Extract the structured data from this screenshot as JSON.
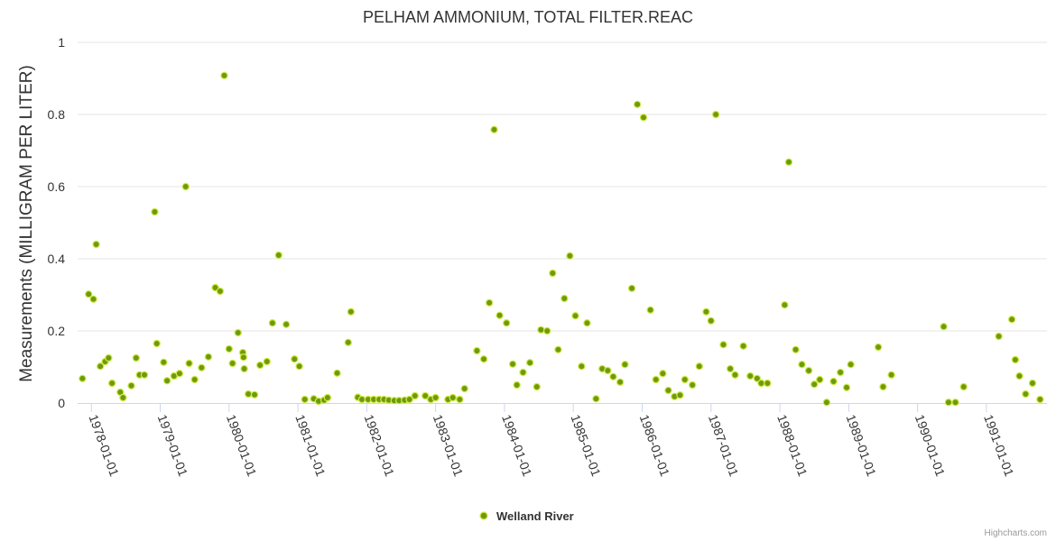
{
  "chart_data": {
    "type": "scatter",
    "title": "PELHAM AMMONIUM, TOTAL FILTER.REAC",
    "ylabel": "Measurements (MILLIGRAM PER LITER)",
    "xlabel": "",
    "ylim": [
      0,
      1
    ],
    "yticks": [
      0,
      0.2,
      0.4,
      0.6,
      0.8,
      1
    ],
    "ytick_labels": [
      "0",
      "0.2",
      "0.4",
      "0.6",
      "0.8",
      "1"
    ],
    "xlim": [
      1977.8,
      1991.88
    ],
    "xticks": [
      1978,
      1979,
      1980,
      1981,
      1982,
      1983,
      1984,
      1985,
      1986,
      1987,
      1988,
      1989,
      1990,
      1991
    ],
    "xtick_labels": [
      "1978-01-01",
      "1979-01-01",
      "1980-01-01",
      "1981-01-01",
      "1982-01-01",
      "1983-01-01",
      "1984-01-01",
      "1985-01-01",
      "1986-01-01",
      "1987-01-01",
      "1988-01-01",
      "1989-01-01",
      "1990-01-01",
      "1991-01-01"
    ],
    "grid": true,
    "legend_position": "bottom-center",
    "color": "#6b9c0e",
    "credits": "Highcharts.com",
    "series": [
      {
        "name": "Welland River",
        "points": [
          [
            1977.87,
            0.068
          ],
          [
            1977.96,
            0.302
          ],
          [
            1978.03,
            0.288
          ],
          [
            1978.07,
            0.44
          ],
          [
            1978.13,
            0.102
          ],
          [
            1978.2,
            0.115
          ],
          [
            1978.25,
            0.125
          ],
          [
            1978.3,
            0.055
          ],
          [
            1978.42,
            0.03
          ],
          [
            1978.46,
            0.015
          ],
          [
            1978.58,
            0.048
          ],
          [
            1978.65,
            0.125
          ],
          [
            1978.7,
            0.078
          ],
          [
            1978.77,
            0.078
          ],
          [
            1978.92,
            0.53
          ],
          [
            1978.95,
            0.165
          ],
          [
            1979.05,
            0.113
          ],
          [
            1979.1,
            0.062
          ],
          [
            1979.2,
            0.075
          ],
          [
            1979.28,
            0.082
          ],
          [
            1979.37,
            0.6
          ],
          [
            1979.42,
            0.11
          ],
          [
            1979.5,
            0.065
          ],
          [
            1979.6,
            0.098
          ],
          [
            1979.7,
            0.128
          ],
          [
            1979.8,
            0.32
          ],
          [
            1979.87,
            0.31
          ],
          [
            1979.93,
            0.908
          ],
          [
            1980.0,
            0.15
          ],
          [
            1980.05,
            0.11
          ],
          [
            1980.13,
            0.195
          ],
          [
            1980.2,
            0.14
          ],
          [
            1980.21,
            0.127
          ],
          [
            1980.22,
            0.095
          ],
          [
            1980.28,
            0.025
          ],
          [
            1980.37,
            0.023
          ],
          [
            1980.45,
            0.105
          ],
          [
            1980.55,
            0.115
          ],
          [
            1980.63,
            0.222
          ],
          [
            1980.72,
            0.41
          ],
          [
            1980.83,
            0.218
          ],
          [
            1980.95,
            0.122
          ],
          [
            1981.02,
            0.102
          ],
          [
            1981.1,
            0.01
          ],
          [
            1981.23,
            0.012
          ],
          [
            1981.3,
            0.005
          ],
          [
            1981.38,
            0.008
          ],
          [
            1981.43,
            0.015
          ],
          [
            1981.57,
            0.083
          ],
          [
            1981.73,
            0.168
          ],
          [
            1981.77,
            0.253
          ],
          [
            1981.87,
            0.016
          ],
          [
            1981.93,
            0.01
          ],
          [
            1982.02,
            0.01
          ],
          [
            1982.1,
            0.01
          ],
          [
            1982.18,
            0.01
          ],
          [
            1982.25,
            0.01
          ],
          [
            1982.32,
            0.008
          ],
          [
            1982.4,
            0.007
          ],
          [
            1982.47,
            0.007
          ],
          [
            1982.55,
            0.008
          ],
          [
            1982.62,
            0.01
          ],
          [
            1982.7,
            0.02
          ],
          [
            1982.85,
            0.02
          ],
          [
            1982.93,
            0.01
          ],
          [
            1983.0,
            0.015
          ],
          [
            1983.18,
            0.01
          ],
          [
            1983.25,
            0.015
          ],
          [
            1983.35,
            0.01
          ],
          [
            1983.42,
            0.04
          ],
          [
            1983.6,
            0.145
          ],
          [
            1983.7,
            0.122
          ],
          [
            1983.78,
            0.278
          ],
          [
            1983.85,
            0.758
          ],
          [
            1983.93,
            0.243
          ],
          [
            1984.03,
            0.222
          ],
          [
            1984.12,
            0.108
          ],
          [
            1984.18,
            0.05
          ],
          [
            1984.27,
            0.085
          ],
          [
            1984.37,
            0.112
          ],
          [
            1984.47,
            0.045
          ],
          [
            1984.53,
            0.203
          ],
          [
            1984.62,
            0.2
          ],
          [
            1984.7,
            0.36
          ],
          [
            1984.78,
            0.148
          ],
          [
            1984.87,
            0.29
          ],
          [
            1984.95,
            0.408
          ],
          [
            1985.03,
            0.242
          ],
          [
            1985.12,
            0.102
          ],
          [
            1985.2,
            0.222
          ],
          [
            1985.33,
            0.012
          ],
          [
            1985.42,
            0.095
          ],
          [
            1985.5,
            0.09
          ],
          [
            1985.58,
            0.073
          ],
          [
            1985.68,
            0.058
          ],
          [
            1985.75,
            0.107
          ],
          [
            1985.85,
            0.318
          ],
          [
            1985.93,
            0.828
          ],
          [
            1986.02,
            0.792
          ],
          [
            1986.12,
            0.258
          ],
          [
            1986.2,
            0.065
          ],
          [
            1986.3,
            0.082
          ],
          [
            1986.38,
            0.035
          ],
          [
            1986.47,
            0.018
          ],
          [
            1986.55,
            0.022
          ],
          [
            1986.62,
            0.065
          ],
          [
            1986.73,
            0.05
          ],
          [
            1986.83,
            0.102
          ],
          [
            1986.93,
            0.253
          ],
          [
            1987.0,
            0.228
          ],
          [
            1987.07,
            0.8
          ],
          [
            1987.18,
            0.162
          ],
          [
            1987.28,
            0.095
          ],
          [
            1987.35,
            0.078
          ],
          [
            1987.47,
            0.158
          ],
          [
            1987.57,
            0.075
          ],
          [
            1987.67,
            0.068
          ],
          [
            1987.73,
            0.055
          ],
          [
            1987.82,
            0.055
          ],
          [
            1988.07,
            0.272
          ],
          [
            1988.13,
            0.668
          ],
          [
            1988.23,
            0.148
          ],
          [
            1988.32,
            0.107
          ],
          [
            1988.42,
            0.09
          ],
          [
            1988.5,
            0.052
          ],
          [
            1988.58,
            0.065
          ],
          [
            1988.68,
            0.002
          ],
          [
            1988.78,
            0.06
          ],
          [
            1988.88,
            0.085
          ],
          [
            1988.97,
            0.043
          ],
          [
            1989.03,
            0.107
          ],
          [
            1989.43,
            0.155
          ],
          [
            1989.5,
            0.045
          ],
          [
            1989.62,
            0.078
          ],
          [
            1990.38,
            0.212
          ],
          [
            1990.45,
            0.002
          ],
          [
            1990.55,
            0.002
          ],
          [
            1990.67,
            0.045
          ],
          [
            1991.18,
            0.185
          ],
          [
            1991.37,
            0.232
          ],
          [
            1991.42,
            0.12
          ],
          [
            1991.48,
            0.075
          ],
          [
            1991.57,
            0.025
          ],
          [
            1991.67,
            0.055
          ],
          [
            1991.78,
            0.01
          ]
        ]
      }
    ]
  }
}
